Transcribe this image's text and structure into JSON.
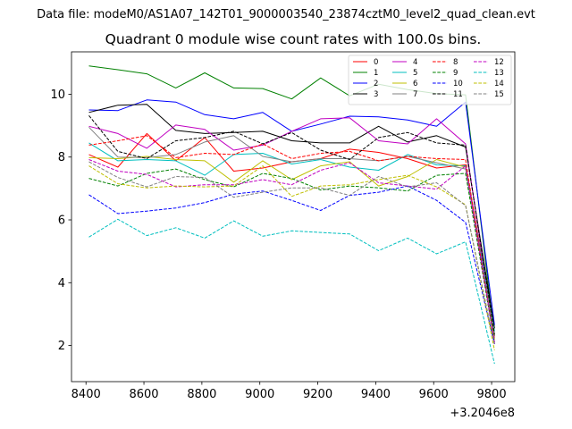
{
  "chart_data": {
    "type": "line",
    "suptitle": "Data file: modeM0/AS1A07_142T01_9000003540_23874cztM0_level2_quad_clean.evt",
    "title": "Quadrant 0 module wise count rates with 100.0s bins.",
    "xlabel": "",
    "ylabel": "",
    "x_offset_label": "+3.2046e8",
    "x": [
      8410,
      8510,
      8610,
      8710,
      8810,
      8910,
      9010,
      9110,
      9210,
      9310,
      9410,
      9510,
      9610,
      9710,
      9810
    ],
    "xlim": [
      8350,
      9880
    ],
    "ylim": [
      0.85,
      11.35
    ],
    "xticks": [
      "8400",
      "8600",
      "8800",
      "9000",
      "9200",
      "9400",
      "9600",
      "9800"
    ],
    "yticks": [
      "2",
      "4",
      "6",
      "8",
      "10"
    ],
    "legend_position": "top-right",
    "series": [
      {
        "name": "0",
        "color": "#ff0000",
        "dash": "solid",
        "values": [
          8.08,
          7.68,
          8.75,
          7.88,
          8.62,
          7.55,
          7.65,
          7.85,
          7.95,
          8.25,
          8.15,
          7.95,
          7.65,
          7.75,
          2.55
        ]
      },
      {
        "name": "1",
        "color": "#008000",
        "dash": "solid",
        "values": [
          10.9,
          10.78,
          10.65,
          10.2,
          10.68,
          10.2,
          10.18,
          9.85,
          10.52,
          9.95,
          10.32,
          10.15,
          10.02,
          9.98,
          2.3
        ]
      },
      {
        "name": "2",
        "color": "#0000ff",
        "dash": "solid",
        "values": [
          9.5,
          9.48,
          9.82,
          9.75,
          9.35,
          9.22,
          9.42,
          8.82,
          9.05,
          9.3,
          9.28,
          9.18,
          8.98,
          9.75,
          2.65
        ]
      },
      {
        "name": "3",
        "color": "#000000",
        "dash": "solid",
        "values": [
          9.42,
          9.65,
          9.68,
          8.85,
          8.75,
          8.78,
          8.82,
          8.52,
          8.45,
          8.45,
          8.98,
          8.48,
          8.68,
          8.32,
          2.55
        ]
      },
      {
        "name": "4",
        "color": "#c000c0",
        "dash": "solid",
        "values": [
          8.98,
          8.75,
          8.28,
          9.02,
          8.88,
          8.22,
          8.38,
          8.82,
          9.22,
          9.25,
          8.52,
          8.42,
          9.22,
          8.42,
          2.25
        ]
      },
      {
        "name": "5",
        "color": "#00bfbf",
        "dash": "solid",
        "values": [
          8.45,
          7.88,
          7.92,
          7.88,
          7.42,
          8.08,
          8.12,
          7.78,
          7.92,
          7.68,
          7.58,
          8.08,
          7.75,
          7.72,
          2.45
        ]
      },
      {
        "name": "6",
        "color": "#bfbf00",
        "dash": "solid",
        "values": [
          7.98,
          7.95,
          8.02,
          7.92,
          7.88,
          7.2,
          7.88,
          7.28,
          7.72,
          7.85,
          7.08,
          7.38,
          7.92,
          7.68,
          2.2
        ]
      },
      {
        "name": "7",
        "color": "#808080",
        "dash": "solid",
        "values": [
          8.95,
          8.0,
          7.98,
          8.08,
          8.48,
          8.68,
          8.02,
          7.85,
          7.95,
          7.95,
          7.88,
          8.02,
          7.82,
          7.62,
          2.35
        ]
      },
      {
        "name": "8",
        "color": "#ff0000",
        "dash": "dashed",
        "values": [
          8.38,
          8.52,
          8.68,
          7.98,
          8.12,
          8.08,
          8.42,
          7.95,
          8.12,
          8.18,
          7.88,
          8.02,
          7.95,
          7.92,
          2.05
        ]
      },
      {
        "name": "9",
        "color": "#008000",
        "dash": "dashed",
        "values": [
          7.32,
          7.08,
          7.48,
          7.62,
          7.28,
          7.05,
          7.48,
          7.32,
          6.95,
          7.08,
          7.02,
          6.92,
          7.42,
          7.48,
          2.1
        ]
      },
      {
        "name": "10",
        "color": "#0000ff",
        "dash": "dashed",
        "values": [
          6.8,
          6.2,
          6.28,
          6.38,
          6.55,
          6.82,
          6.92,
          6.62,
          6.3,
          6.78,
          6.88,
          7.08,
          6.62,
          5.92,
          2.05
        ]
      },
      {
        "name": "11",
        "color": "#000000",
        "dash": "dashed",
        "values": [
          9.32,
          8.18,
          7.95,
          8.52,
          8.62,
          8.82,
          8.42,
          8.78,
          8.22,
          7.92,
          8.62,
          8.78,
          8.45,
          8.38,
          2.35
        ]
      },
      {
        "name": "12",
        "color": "#c000c0",
        "dash": "dashed",
        "values": [
          7.92,
          7.55,
          7.45,
          7.05,
          7.12,
          7.12,
          7.28,
          7.12,
          7.58,
          7.82,
          7.18,
          7.08,
          6.98,
          7.72,
          2.1
        ]
      },
      {
        "name": "13",
        "color": "#00bfbf",
        "dash": "dashed",
        "values": [
          5.45,
          6.02,
          5.5,
          5.75,
          5.42,
          5.97,
          5.48,
          5.65,
          5.6,
          5.55,
          5.02,
          5.42,
          4.92,
          5.3,
          1.42
        ]
      },
      {
        "name": "14",
        "color": "#bfbf00",
        "dash": "dashed",
        "values": [
          7.72,
          7.15,
          7.02,
          7.08,
          7.05,
          7.08,
          7.72,
          6.75,
          7.08,
          7.12,
          7.28,
          7.42,
          7.05,
          6.48,
          1.85
        ]
      },
      {
        "name": "15",
        "color": "#808080",
        "dash": "dashed",
        "values": [
          7.85,
          7.35,
          7.05,
          7.38,
          7.35,
          6.72,
          6.88,
          7.02,
          7.02,
          6.78,
          7.38,
          7.05,
          7.18,
          6.45,
          2.02
        ]
      }
    ]
  }
}
